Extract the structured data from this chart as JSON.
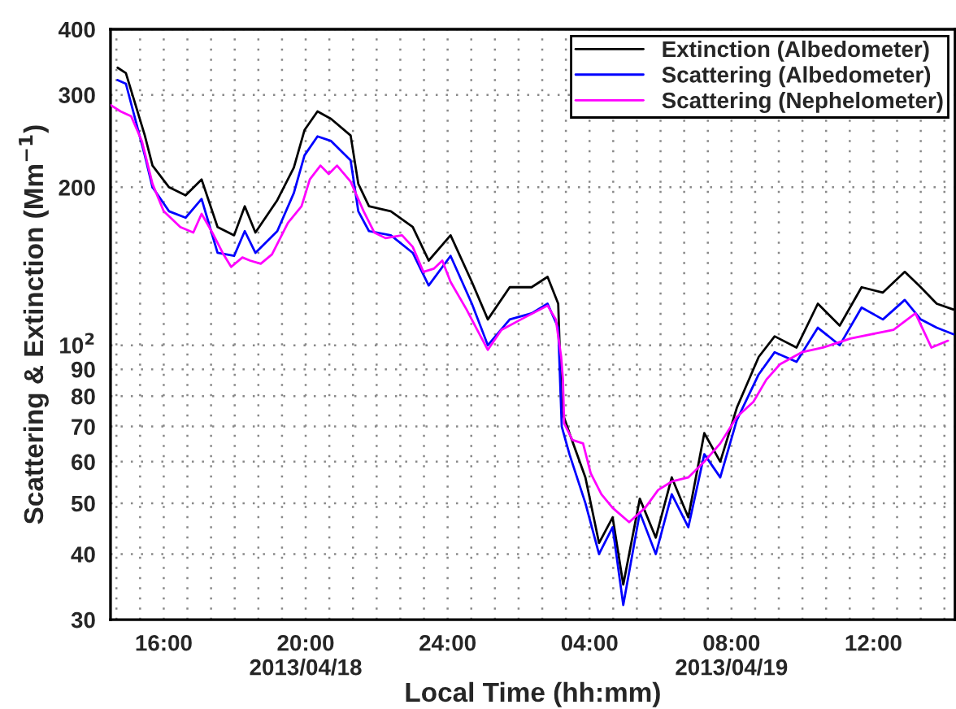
{
  "chart_data": {
    "type": "line",
    "xlabel": "Local Time (hh:mm)",
    "ylabel": "Scattering & Extinction (Mm$^{−1}$)",
    "log": "y",
    "grid": true,
    "legend": "top right",
    "line_style": "solid",
    "marker": "none",
    "xlim": [
      "2013-04-18T14:30",
      "2013-04-19T14:18"
    ],
    "xticks": [
      {
        "value": "2013-04-18T14:40",
        "label": null
      },
      {
        "value": "2013-04-18T15:20",
        "label": null
      },
      {
        "value": "2013-04-18T16:00",
        "label": "16:00"
      },
      {
        "value": "2013-04-18T16:40",
        "label": null
      },
      {
        "value": "2013-04-18T17:20",
        "label": null
      },
      {
        "value": "2013-04-18T18:00",
        "label": null
      },
      {
        "value": "2013-04-18T18:40",
        "label": null
      },
      {
        "value": "2013-04-18T19:20",
        "label": null
      },
      {
        "value": "2013-04-18T20:00",
        "label": "20:00\n2013/04/18"
      },
      {
        "value": "2013-04-18T20:40",
        "label": null
      },
      {
        "value": "2013-04-18T21:20",
        "label": null
      },
      {
        "value": "2013-04-18T22:00",
        "label": null
      },
      {
        "value": "2013-04-18T22:40",
        "label": null
      },
      {
        "value": "2013-04-18T23:20",
        "label": null
      },
      {
        "value": "2013-04-19T00:00",
        "label": "24:00"
      },
      {
        "value": "2013-04-19T00:40",
        "label": null
      },
      {
        "value": "2013-04-19T01:20",
        "label": null
      },
      {
        "value": "2013-04-19T02:00",
        "label": null
      },
      {
        "value": "2013-04-19T02:40",
        "label": null
      },
      {
        "value": "2013-04-19T03:20",
        "label": null
      },
      {
        "value": "2013-04-19T04:00",
        "label": "04:00"
      },
      {
        "value": "2013-04-19T04:40",
        "label": null
      },
      {
        "value": "2013-04-19T05:20",
        "label": null
      },
      {
        "value": "2013-04-19T06:00",
        "label": null
      },
      {
        "value": "2013-04-19T06:40",
        "label": null
      },
      {
        "value": "2013-04-19T07:20",
        "label": null
      },
      {
        "value": "2013-04-19T08:00",
        "label": "08:00\n2013/04/19"
      },
      {
        "value": "2013-04-19T08:40",
        "label": null
      },
      {
        "value": "2013-04-19T09:20",
        "label": null
      },
      {
        "value": "2013-04-19T10:00",
        "label": null
      },
      {
        "value": "2013-04-19T10:40",
        "label": null
      },
      {
        "value": "2013-04-19T11:20",
        "label": null
      },
      {
        "value": "2013-04-19T12:00",
        "label": "12:00"
      },
      {
        "value": "2013-04-19T12:40",
        "label": null
      },
      {
        "value": "2013-04-19T13:20",
        "label": null
      },
      {
        "value": "2013-04-19T14:00",
        "label": null
      }
    ],
    "ylim": [
      30,
      400
    ],
    "yticks": [
      30,
      40,
      50,
      60,
      70,
      80,
      90,
      {
        "value": 100,
        "label": "10$^{2}$"
      },
      200,
      300,
      400
    ],
    "series": [
      {
        "name": "Extinction (Albedometer)",
        "color": "#000000",
        "x": [
          "2013-04-18T14:42",
          "2013-04-18T14:56",
          "2013-04-18T15:28",
          "2013-04-18T15:41",
          "2013-04-18T16:09",
          "2013-04-18T16:37",
          "2013-04-18T17:04",
          "2013-04-18T17:31",
          "2013-04-18T17:59",
          "2013-04-18T18:17",
          "2013-04-18T18:35",
          "2013-04-18T19:12",
          "2013-04-18T19:40",
          "2013-04-18T19:58",
          "2013-04-18T20:20",
          "2013-04-18T20:43",
          "2013-04-18T21:16",
          "2013-04-18T21:29",
          "2013-04-18T21:47",
          "2013-04-18T22:24",
          "2013-04-18T23:01",
          "2013-04-18T23:28",
          "2013-04-19T00:05",
          "2013-04-19T00:41",
          "2013-04-19T01:08",
          "2013-04-19T01:45",
          "2013-04-19T02:22",
          "2013-04-19T02:49",
          "2013-04-19T03:07",
          "2013-04-19T03:13",
          "2013-04-19T03:26",
          "2013-04-19T03:53",
          "2013-04-19T04:16",
          "2013-04-19T04:39",
          "2013-04-19T04:57",
          "2013-04-19T05:25",
          "2013-04-19T05:52",
          "2013-04-19T06:19",
          "2013-04-19T06:47",
          "2013-04-19T07:14",
          "2013-04-19T07:41",
          "2013-04-19T08:09",
          "2013-04-19T08:46",
          "2013-04-19T09:13",
          "2013-04-19T09:50",
          "2013-04-19T10:26",
          "2013-04-19T11:03",
          "2013-04-19T11:40",
          "2013-04-19T12:16",
          "2013-04-19T12:53",
          "2013-04-19T13:20",
          "2013-04-19T13:47",
          "2013-04-19T14:15"
        ],
        "values": [
          338,
          330,
          251,
          220,
          200,
          193,
          207,
          168,
          162,
          184,
          164,
          189,
          218,
          257,
          279,
          270,
          251,
          203,
          184,
          180,
          168,
          145,
          162,
          132,
          112,
          129,
          129,
          135,
          120,
          75,
          68,
          56,
          42,
          47,
          35,
          51,
          43,
          56,
          47,
          68,
          60,
          76,
          95,
          104,
          99,
          120,
          109,
          129,
          126,
          138,
          129,
          120,
          117
        ]
      },
      {
        "name": "Scattering (Albedometer)",
        "color": "#0000ff",
        "x": [
          "2013-04-18T14:42",
          "2013-04-18T14:56",
          "2013-04-18T15:28",
          "2013-04-18T15:41",
          "2013-04-18T16:09",
          "2013-04-18T16:37",
          "2013-04-18T17:04",
          "2013-04-18T17:31",
          "2013-04-18T17:59",
          "2013-04-18T18:17",
          "2013-04-18T18:35",
          "2013-04-18T19:12",
          "2013-04-18T19:40",
          "2013-04-18T19:58",
          "2013-04-18T20:20",
          "2013-04-18T20:43",
          "2013-04-18T21:16",
          "2013-04-18T21:29",
          "2013-04-18T21:47",
          "2013-04-18T22:24",
          "2013-04-18T23:01",
          "2013-04-18T23:28",
          "2013-04-19T00:05",
          "2013-04-19T00:41",
          "2013-04-19T01:08",
          "2013-04-19T01:45",
          "2013-04-19T02:22",
          "2013-04-19T02:49",
          "2013-04-19T03:07",
          "2013-04-19T03:13",
          "2013-04-19T03:26",
          "2013-04-19T03:53",
          "2013-04-19T04:16",
          "2013-04-19T04:39",
          "2013-04-19T04:57",
          "2013-04-19T05:25",
          "2013-04-19T05:52",
          "2013-04-19T06:19",
          "2013-04-19T06:47",
          "2013-04-19T07:14",
          "2013-04-19T07:41",
          "2013-04-19T08:09",
          "2013-04-19T08:46",
          "2013-04-19T09:13",
          "2013-04-19T09:50",
          "2013-04-19T10:26",
          "2013-04-19T11:03",
          "2013-04-19T11:40",
          "2013-04-19T12:16",
          "2013-04-19T12:53",
          "2013-04-19T13:20",
          "2013-04-19T13:47",
          "2013-04-19T14:15"
        ],
        "values": [
          320,
          315,
          230,
          200,
          180,
          175,
          190,
          150,
          148,
          165,
          150,
          165,
          195,
          230,
          250,
          245,
          225,
          180,
          165,
          162,
          150,
          130,
          148,
          120,
          100,
          112,
          115,
          120,
          108,
          70,
          62,
          50,
          40,
          45,
          32,
          48,
          40,
          52,
          45,
          62,
          56,
          72,
          88,
          97,
          93,
          108,
          100,
          118,
          112,
          122,
          112,
          108,
          105
        ]
      },
      {
        "name": "Scattering (Nephelometer)",
        "color": "#ff00ff",
        "x": [
          "2013-04-18T14:30",
          "2013-04-18T14:47",
          "2013-04-18T15:05",
          "2013-04-18T15:23",
          "2013-04-18T15:41",
          "2013-04-18T16:00",
          "2013-04-18T16:28",
          "2013-04-18T16:50",
          "2013-04-18T17:04",
          "2013-04-18T17:22",
          "2013-04-18T17:41",
          "2013-04-18T17:54",
          "2013-04-18T18:13",
          "2013-04-18T18:26",
          "2013-04-18T18:44",
          "2013-04-18T19:03",
          "2013-04-18T19:30",
          "2013-04-18T19:53",
          "2013-04-18T20:07",
          "2013-04-18T20:25",
          "2013-04-18T20:39",
          "2013-04-18T20:53",
          "2013-04-18T21:16",
          "2013-04-18T21:38",
          "2013-04-18T21:56",
          "2013-04-18T22:15",
          "2013-04-18T22:43",
          "2013-04-18T23:01",
          "2013-04-18T23:19",
          "2013-04-18T23:37",
          "2013-04-18T23:51",
          "2013-04-19T00:05",
          "2013-04-19T00:32",
          "2013-04-19T00:50",
          "2013-04-19T01:08",
          "2013-04-19T01:31",
          "2013-04-19T02:04",
          "2013-04-19T02:49",
          "2013-04-19T03:03",
          "2013-04-19T03:12",
          "2013-04-19T03:15",
          "2013-04-19T03:17",
          "2013-04-19T03:31",
          "2013-04-19T03:49",
          "2013-04-19T04:02",
          "2013-04-19T04:20",
          "2013-04-19T04:39",
          "2013-04-19T05:07",
          "2013-04-19T05:34",
          "2013-04-19T05:56",
          "2013-04-19T06:19",
          "2013-04-19T06:47",
          "2013-04-19T07:14",
          "2013-04-19T07:41",
          "2013-04-19T08:09",
          "2013-04-19T08:37",
          "2013-04-19T08:59",
          "2013-04-19T09:22",
          "2013-04-19T09:59",
          "2013-04-19T10:35",
          "2013-04-19T11:21",
          "2013-04-19T11:58",
          "2013-04-19T12:34",
          "2013-04-19T13:11",
          "2013-04-19T13:38",
          "2013-04-19T14:06"
        ],
        "values": [
          287,
          279,
          273,
          245,
          203,
          180,
          168,
          164,
          178,
          164,
          149,
          141,
          147,
          145,
          143,
          149,
          171,
          184,
          207,
          220,
          212,
          220,
          205,
          180,
          164,
          160,
          162,
          154,
          138,
          140,
          145,
          132,
          117,
          107,
          98,
          107,
          112,
          119,
          112,
          95,
          86,
          71,
          66,
          65,
          57,
          52,
          49,
          46,
          49,
          53,
          55,
          56,
          60,
          65,
          73,
          78,
          86,
          92,
          97,
          99,
          103,
          105,
          107,
          115,
          99,
          102
        ]
      }
    ]
  }
}
